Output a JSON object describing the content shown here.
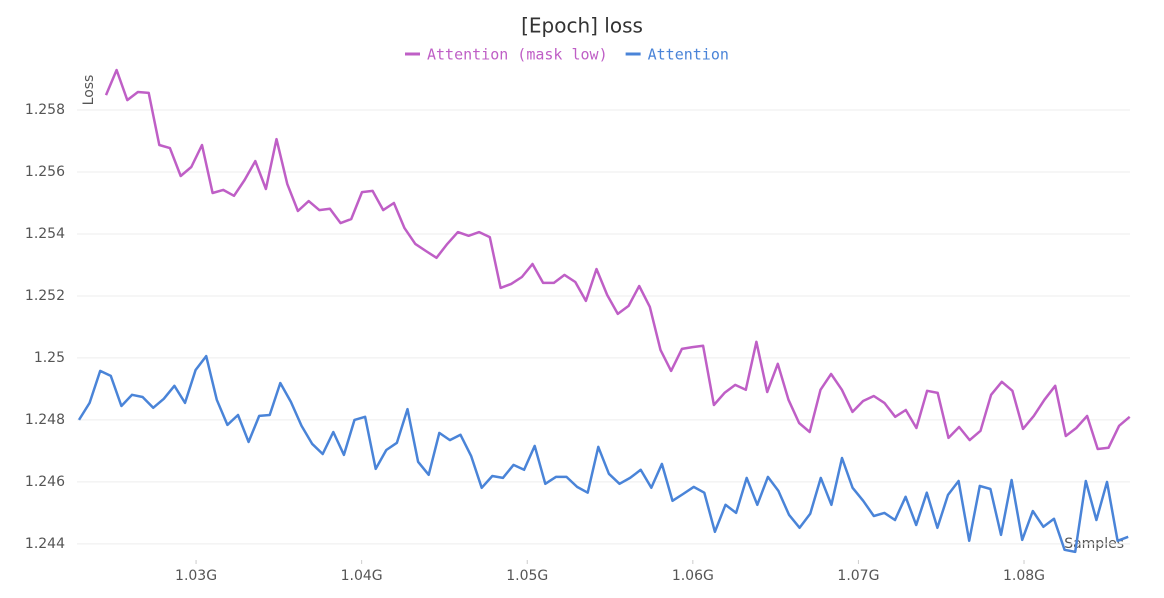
{
  "chart_data": {
    "type": "line",
    "title": "[Epoch] loss",
    "ylabel": "Loss",
    "xlabel": "Samples",
    "legend": "top",
    "grid": true,
    "xlim": [
      1.02281,
      1.0864
    ],
    "ylim": [
      1.24348,
      1.25929
    ],
    "xticks": [
      {
        "value": 1.03,
        "label": "1.03G"
      },
      {
        "value": 1.04,
        "label": "1.04G"
      },
      {
        "value": 1.05,
        "label": "1.05G"
      },
      {
        "value": 1.06,
        "label": "1.06G"
      },
      {
        "value": 1.07,
        "label": "1.07G"
      },
      {
        "value": 1.08,
        "label": "1.08G"
      }
    ],
    "yticks": [
      1.244,
      1.246,
      1.248,
      1.25,
      1.252,
      1.254,
      1.256,
      1.258
    ],
    "series": [
      {
        "name": "Attention (mask low)",
        "color": "#bf5fc6",
        "x": [
          1.02456,
          1.0252,
          1.02585,
          1.02649,
          1.02714,
          1.02778,
          1.02842,
          1.02907,
          1.02971,
          1.03036,
          1.031,
          1.03164,
          1.03229,
          1.03293,
          1.03358,
          1.03422,
          1.03486,
          1.03551,
          1.03615,
          1.0368,
          1.03744,
          1.03808,
          1.03873,
          1.03937,
          1.04002,
          1.04066,
          1.0413,
          1.04195,
          1.04259,
          1.04324,
          1.04388,
          1.04452,
          1.04517,
          1.04581,
          1.04646,
          1.0471,
          1.04774,
          1.04839,
          1.04903,
          1.04968,
          1.05032,
          1.05096,
          1.05161,
          1.05225,
          1.0529,
          1.05354,
          1.05418,
          1.05483,
          1.05547,
          1.05612,
          1.05676,
          1.0574,
          1.05805,
          1.05869,
          1.05934,
          1.05998,
          1.06062,
          1.06127,
          1.06191,
          1.06256,
          1.0632,
          1.06384,
          1.06449,
          1.06513,
          1.06578,
          1.06642,
          1.06706,
          1.06771,
          1.06835,
          1.069,
          1.06964,
          1.07028,
          1.07093,
          1.07157,
          1.07222,
          1.07286,
          1.0735,
          1.07415,
          1.07479,
          1.07544,
          1.07608,
          1.07672,
          1.07737,
          1.07801,
          1.07866,
          1.0793,
          1.07994,
          1.08059,
          1.08123,
          1.08188,
          1.08252,
          1.08316,
          1.08381,
          1.08445,
          1.0851,
          1.08574,
          1.08638
        ],
        "values": [
          1.25848,
          1.25929,
          1.25832,
          1.25858,
          1.25855,
          1.25687,
          1.25677,
          1.25587,
          1.25616,
          1.25687,
          1.25532,
          1.25542,
          1.25523,
          1.25574,
          1.25635,
          1.25545,
          1.25706,
          1.25561,
          1.25474,
          1.25506,
          1.25477,
          1.25481,
          1.25435,
          1.25448,
          1.25535,
          1.25539,
          1.25477,
          1.255,
          1.25419,
          1.25368,
          1.25345,
          1.25323,
          1.25368,
          1.25406,
          1.25394,
          1.25406,
          1.2539,
          1.25226,
          1.25239,
          1.25261,
          1.25303,
          1.25242,
          1.25242,
          1.25268,
          1.25245,
          1.25184,
          1.25287,
          1.25203,
          1.25142,
          1.25168,
          1.25232,
          1.25165,
          1.25026,
          1.24958,
          1.25029,
          1.25035,
          1.25039,
          1.24848,
          1.24887,
          1.24913,
          1.24897,
          1.25052,
          1.2489,
          1.24981,
          1.24865,
          1.2479,
          1.24761,
          1.24897,
          1.24948,
          1.24897,
          1.24826,
          1.24861,
          1.24877,
          1.24855,
          1.2481,
          1.24832,
          1.24774,
          1.24894,
          1.24887,
          1.24742,
          1.24777,
          1.24735,
          1.24765,
          1.24881,
          1.24923,
          1.24894,
          1.24771,
          1.24813,
          1.24865,
          1.2491,
          1.24748,
          1.24774,
          1.24813,
          1.24706,
          1.2471,
          1.24781,
          1.2481
        ]
      },
      {
        "name": "Attention",
        "color": "#4a84d8",
        "x": [
          1.02293,
          1.02357,
          1.02421,
          1.02485,
          1.02549,
          1.02613,
          1.02677,
          1.02741,
          1.02805,
          1.02869,
          1.02933,
          1.02997,
          1.03061,
          1.03125,
          1.03189,
          1.03253,
          1.03317,
          1.03381,
          1.03445,
          1.03509,
          1.03573,
          1.03637,
          1.03701,
          1.03765,
          1.03829,
          1.03893,
          1.03957,
          1.04021,
          1.04085,
          1.04149,
          1.04213,
          1.04277,
          1.04341,
          1.04405,
          1.04469,
          1.04533,
          1.04597,
          1.04661,
          1.04725,
          1.04789,
          1.04853,
          1.04917,
          1.04981,
          1.05045,
          1.05109,
          1.05173,
          1.05237,
          1.05301,
          1.05365,
          1.05429,
          1.05493,
          1.05557,
          1.05621,
          1.05685,
          1.05749,
          1.05813,
          1.05877,
          1.05941,
          1.06005,
          1.06069,
          1.06133,
          1.06197,
          1.06261,
          1.06325,
          1.06389,
          1.06453,
          1.06517,
          1.06581,
          1.06645,
          1.06709,
          1.06773,
          1.06837,
          1.06901,
          1.06965,
          1.07029,
          1.07093,
          1.07157,
          1.07221,
          1.07285,
          1.07349,
          1.07413,
          1.07477,
          1.07541,
          1.07605,
          1.07669,
          1.07733,
          1.07797,
          1.07861,
          1.07925,
          1.07989,
          1.08053,
          1.08117,
          1.08181,
          1.08245,
          1.08309,
          1.08373,
          1.08437,
          1.08501,
          1.08565,
          1.08629
        ],
        "values": [
          1.248,
          1.24855,
          1.24958,
          1.24942,
          1.24845,
          1.24881,
          1.24874,
          1.24839,
          1.24868,
          1.2491,
          1.24855,
          1.24961,
          1.25006,
          1.24865,
          1.24784,
          1.24816,
          1.24729,
          1.24813,
          1.24816,
          1.24919,
          1.24858,
          1.24781,
          1.24723,
          1.2469,
          1.24761,
          1.24687,
          1.248,
          1.2481,
          1.24642,
          1.24703,
          1.24726,
          1.24835,
          1.24665,
          1.24623,
          1.24758,
          1.24735,
          1.24752,
          1.24684,
          1.24581,
          1.24619,
          1.24613,
          1.24655,
          1.24639,
          1.24716,
          1.24594,
          1.24616,
          1.24616,
          1.24584,
          1.24565,
          1.24713,
          1.24626,
          1.24594,
          1.24613,
          1.24639,
          1.24581,
          1.24658,
          1.24539,
          1.24561,
          1.24584,
          1.24565,
          1.24439,
          1.24526,
          1.245,
          1.24613,
          1.24526,
          1.24616,
          1.24571,
          1.24494,
          1.24452,
          1.24497,
          1.24613,
          1.24526,
          1.24677,
          1.24581,
          1.24539,
          1.2449,
          1.245,
          1.24477,
          1.24552,
          1.24461,
          1.24565,
          1.24452,
          1.24558,
          1.24603,
          1.2441,
          1.24587,
          1.24577,
          1.24429,
          1.24606,
          1.24413,
          1.24506,
          1.24455,
          1.24481,
          1.24381,
          1.24374,
          1.24603,
          1.24477,
          1.246,
          1.2441,
          1.24423
        ]
      }
    ]
  }
}
